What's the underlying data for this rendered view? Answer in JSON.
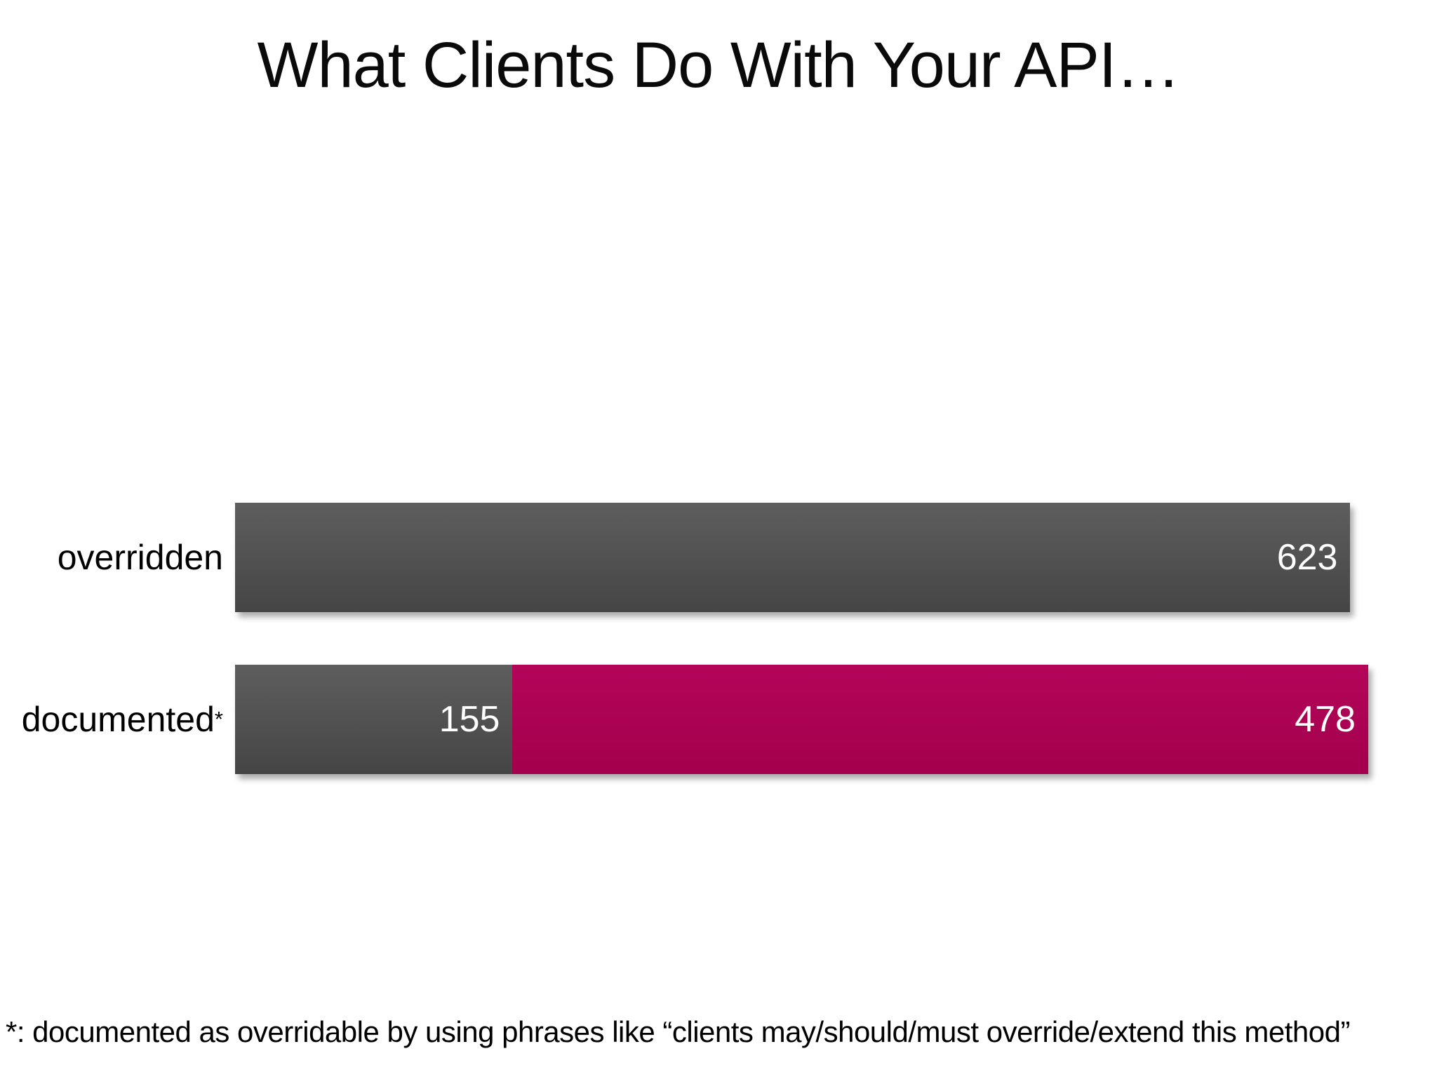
{
  "chart_data": {
    "type": "bar",
    "orientation": "horizontal",
    "title": "What Clients Do With Your API…",
    "footnote": "*: documented as overridable by using phrases like “clients may/should/must override/extend this method”",
    "xlabel": "",
    "ylabel": "",
    "xmax": 633,
    "grid": false,
    "legend": false,
    "axes_shown": false,
    "colors": {
      "dark_gray": "#4d4d4d",
      "magenta": "#ad0153",
      "value_label": "#ffffff",
      "category_label": "#000000"
    },
    "gradients": {
      "dark_gray": [
        "#5e5e5e",
        "#454545"
      ],
      "magenta": [
        "#b40559",
        "#a3004d"
      ]
    },
    "rows": [
      {
        "label": "overridden",
        "label_superscript": "",
        "total": 623,
        "segments": [
          {
            "value": 623,
            "value_label": "623",
            "color_key": "dark_gray"
          }
        ]
      },
      {
        "label": "documented",
        "label_superscript": "*",
        "total": 633,
        "segments": [
          {
            "value": 155,
            "value_label": "155",
            "color_key": "dark_gray"
          },
          {
            "value": 478,
            "value_label": "478",
            "color_key": "magenta"
          }
        ]
      }
    ]
  }
}
